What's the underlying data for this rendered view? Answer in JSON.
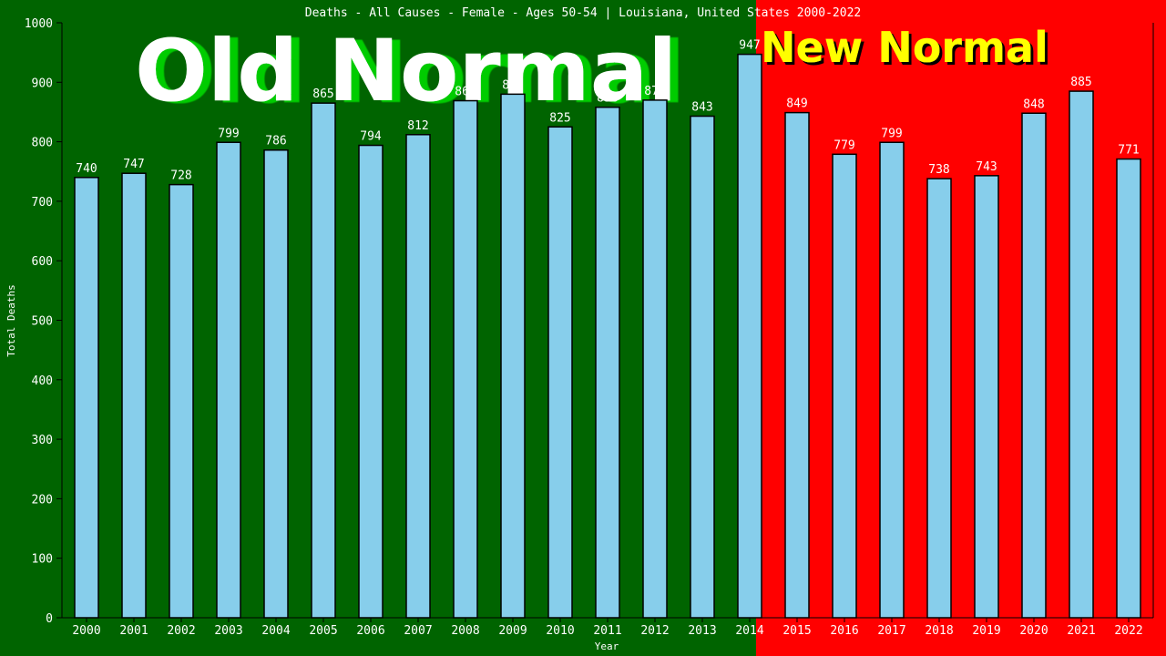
{
  "chart_data": {
    "type": "bar",
    "title": "Deaths - All Causes - Female - Ages 50-54 | Louisiana, United States 2000-2022",
    "xlabel": "Year",
    "ylabel": "Total Deaths",
    "ylim": [
      0,
      1000
    ],
    "yticks": [
      0,
      100,
      200,
      300,
      400,
      500,
      600,
      700,
      800,
      900,
      1000
    ],
    "grid": false,
    "categories": [
      "2000",
      "2001",
      "2002",
      "2003",
      "2004",
      "2005",
      "2006",
      "2007",
      "2008",
      "2009",
      "2010",
      "2011",
      "2012",
      "2013",
      "2014",
      "2015",
      "2016",
      "2017",
      "2018",
      "2019",
      "2020",
      "2021",
      "2022"
    ],
    "values": [
      740,
      747,
      728,
      799,
      786,
      865,
      794,
      812,
      869,
      880,
      825,
      858,
      870,
      843,
      947,
      849,
      779,
      799,
      738,
      743,
      848,
      885,
      771
    ],
    "annotations": {
      "old_label": "Old Normal",
      "new_label": "New Normal"
    },
    "colors": {
      "old_background": "#006400",
      "new_background": "#ff0000",
      "bar": "#87ceeb",
      "old_text": "#ffffff",
      "old_shadow": "#00cc00",
      "new_text": "#ffff00",
      "new_shadow": "#000000"
    }
  }
}
